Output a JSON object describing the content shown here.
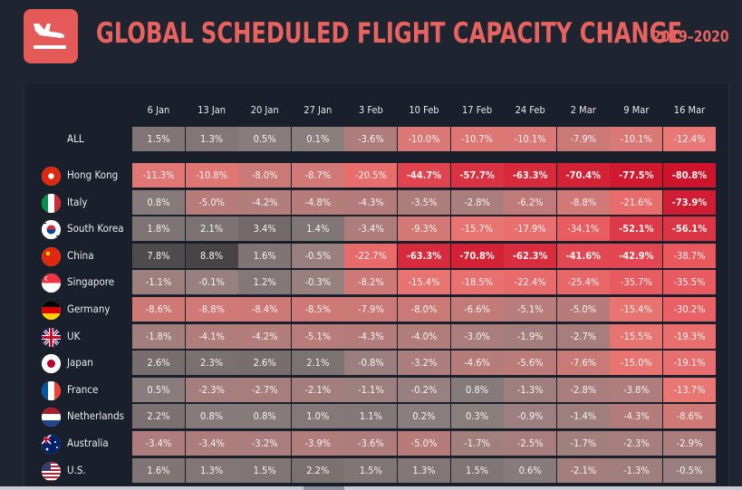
{
  "header": {
    "title": "GLOBAL SCHEDULED FLIGHT CAPACITY CHANGE",
    "subtitle": "2019–2020",
    "logo_icon": "plane-landing-icon",
    "accent_color": "#e86360"
  },
  "chart_data": {
    "type": "heatmap",
    "title": "GLOBAL SCHEDULED FLIGHT CAPACITY CHANGE",
    "subtitle": "2019–2020",
    "columns": [
      "6 Jan",
      "13 Jan",
      "20 Jan",
      "27 Jan",
      "3 Feb",
      "10 Feb",
      "17 Feb",
      "24 Feb",
      "2 Mar",
      "9 Mar",
      "16 Mar"
    ],
    "rows": [
      {
        "name": "ALL",
        "flag": "",
        "values": [
          1.5,
          1.3,
          0.5,
          0.1,
          -3.6,
          -10.0,
          -10.7,
          -10.1,
          -7.9,
          -10.1,
          -12.4
        ],
        "labels": [
          "1.5%",
          "1.3%",
          "0.5%",
          "0.1%",
          "-3.6%",
          "-10.0%",
          "-10.7%",
          "-10.1%",
          "-7.9%",
          "-10.1%",
          "-12.4%"
        ]
      },
      {
        "name": "Hong Kong",
        "flag": "hong-kong-flag-icon",
        "values": [
          -11.3,
          -10.8,
          -8.0,
          -8.7,
          -20.5,
          -44.7,
          -57.7,
          -63.3,
          -70.4,
          -77.5,
          -80.8
        ],
        "labels": [
          "-11.3%",
          "-10.8%",
          "-8.0%",
          "-8.7%",
          "-20.5%",
          "-44.7%",
          "-57.7%",
          "-63.3%",
          "-70.4%",
          "-77.5%",
          "-80.8%"
        ]
      },
      {
        "name": "Italy",
        "flag": "italy-flag-icon",
        "values": [
          0.8,
          -5.0,
          -4.2,
          -4.8,
          -4.3,
          -3.5,
          -2.8,
          -6.2,
          -8.8,
          -21.6,
          -73.9
        ],
        "labels": [
          "0.8%",
          "-5.0%",
          "-4.2%",
          "-4.8%",
          "-4.3%",
          "-3.5%",
          "-2.8%",
          "-6.2%",
          "-8.8%",
          "-21.6%",
          "-73.9%"
        ]
      },
      {
        "name": "South Korea",
        "flag": "south-korea-flag-icon",
        "values": [
          1.8,
          2.1,
          3.4,
          1.4,
          -3.4,
          -9.3,
          -15.7,
          -17.9,
          -34.1,
          -52.1,
          -56.1
        ],
        "labels": [
          "1.8%",
          "2.1%",
          "3.4%",
          "1.4%",
          "-3.4%",
          "-9.3%",
          "-15.7%",
          "-17.9%",
          "-34.1%",
          "-52.1%",
          "-56.1%"
        ]
      },
      {
        "name": "China",
        "flag": "china-flag-icon",
        "values": [
          7.8,
          8.8,
          1.6,
          -0.5,
          -22.7,
          -63.3,
          -70.8,
          -62.3,
          -41.6,
          -42.9,
          -38.7
        ],
        "labels": [
          "7.8%",
          "8.8%",
          "1.6%",
          "-0.5%",
          "-22.7%",
          "-63.3%",
          "-70.8%",
          "-62.3%",
          "-41.6%",
          "-42.9%",
          "-38.7%"
        ]
      },
      {
        "name": "Singapore",
        "flag": "singapore-flag-icon",
        "values": [
          -1.1,
          -0.1,
          1.2,
          -0.3,
          -8.2,
          -15.4,
          -18.5,
          -22.4,
          -25.4,
          -35.7,
          -35.5
        ],
        "labels": [
          "-1.1%",
          "-0.1%",
          "1.2%",
          "-0.3%",
          "-8.2%",
          "-15.4%",
          "-18.5%",
          "-22.4%",
          "-25.4%",
          "-35.7%",
          "-35.5%"
        ]
      },
      {
        "name": "Germany",
        "flag": "germany-flag-icon",
        "values": [
          -8.6,
          -8.8,
          -8.4,
          -8.5,
          -7.9,
          -8.0,
          -6.6,
          -5.1,
          -5.0,
          -15.4,
          -30.2
        ],
        "labels": [
          "-8.6%",
          "-8.8%",
          "-8.4%",
          "-8.5%",
          "-7.9%",
          "-8.0%",
          "-6.6%",
          "-5.1%",
          "-5.0%",
          "-15.4%",
          "-30.2%"
        ]
      },
      {
        "name": "UK",
        "flag": "uk-flag-icon",
        "values": [
          -1.8,
          -4.1,
          -4.2,
          -5.1,
          -4.3,
          -4.0,
          -3.0,
          -1.9,
          -2.7,
          -15.5,
          -19.3
        ],
        "labels": [
          "-1.8%",
          "-4.1%",
          "-4.2%",
          "-5.1%",
          "-4.3%",
          "-4.0%",
          "-3.0%",
          "-1.9%",
          "-2.7%",
          "-15.5%",
          "-19.3%"
        ]
      },
      {
        "name": "Japan",
        "flag": "japan-flag-icon",
        "values": [
          2.6,
          2.3,
          2.6,
          2.1,
          -0.8,
          -3.2,
          -4.6,
          -5.6,
          -7.6,
          -15.0,
          -19.1
        ],
        "labels": [
          "2.6%",
          "2.3%",
          "2.6%",
          "2.1%",
          "-0.8%",
          "-3.2%",
          "-4.6%",
          "-5.6%",
          "-7.6%",
          "-15.0%",
          "-19.1%"
        ]
      },
      {
        "name": "France",
        "flag": "france-flag-icon",
        "values": [
          0.5,
          -2.3,
          -2.7,
          -2.1,
          -1.1,
          -0.2,
          0.8,
          -1.3,
          -2.8,
          -3.8,
          -13.7
        ],
        "labels": [
          "0.5%",
          "-2.3%",
          "-2.7%",
          "-2.1%",
          "-1.1%",
          "-0.2%",
          "0.8%",
          "-1.3%",
          "-2.8%",
          "-3.8%",
          "-13.7%"
        ]
      },
      {
        "name": "Netherlands",
        "flag": "netherlands-flag-icon",
        "values": [
          2.2,
          0.8,
          0.8,
          1.0,
          1.1,
          0.2,
          0.3,
          -0.9,
          -1.4,
          -4.3,
          -8.6
        ],
        "labels": [
          "2.2%",
          "0.8%",
          "0.8%",
          "1.0%",
          "1.1%",
          "0.2%",
          "0.3%",
          "-0.9%",
          "-1.4%",
          "-4.3%",
          "-8.6%"
        ]
      },
      {
        "name": "Australia",
        "flag": "australia-flag-icon",
        "values": [
          -3.4,
          -3.4,
          -3.2,
          -3.9,
          -3.6,
          -5.0,
          -1.7,
          -2.5,
          -1.7,
          -2.3,
          -2.9
        ],
        "labels": [
          "-3.4%",
          "-3.4%",
          "-3.2%",
          "-3.9%",
          "-3.6%",
          "-5.0%",
          "-1.7%",
          "-2.5%",
          "-1.7%",
          "-2.3%",
          "-2.9%"
        ]
      },
      {
        "name": "U.S.",
        "flag": "us-flag-icon",
        "values": [
          1.6,
          1.3,
          1.5,
          2.2,
          1.5,
          1.3,
          1.5,
          0.6,
          -2.1,
          -1.3,
          -0.5
        ],
        "labels": [
          "1.6%",
          "1.3%",
          "1.5%",
          "2.2%",
          "1.5%",
          "1.3%",
          "1.5%",
          "0.6%",
          "-2.1%",
          "-1.3%",
          "-0.5%"
        ]
      }
    ],
    "colors": {
      "neutral": "#8a807f",
      "positive": "#5a5656",
      "mild_negative": "#e87a78",
      "severe_negative": "#d0172c"
    },
    "legend": "none",
    "grid": false
  }
}
